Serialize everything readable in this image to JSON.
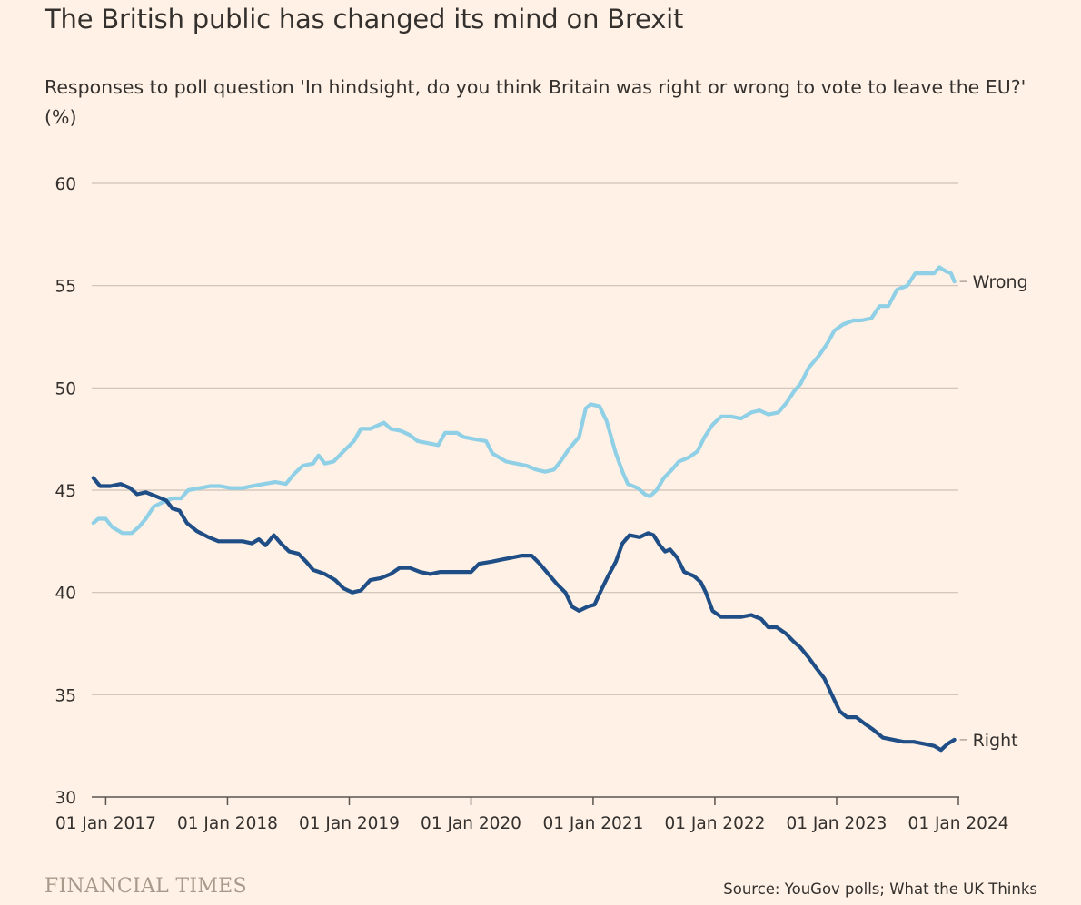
{
  "title": "The British public has changed its mind on Brexit",
  "subtitle": "Responses to poll question 'In hindsight, do you think Britain was right or wrong to vote to leave the EU?' (%)",
  "source": "Source: YouGov polls; What the UK Thinks",
  "brand": "FINANCIAL TIMES",
  "colors": {
    "background": "#fff1e5",
    "wrong": "#8fd0e6",
    "right": "#1f4e86",
    "grid": "#cdc1b7",
    "axis": "#5a5450",
    "text": "#33302e"
  },
  "chart_data": {
    "type": "line",
    "title": "The British public has changed its mind on Brexit",
    "xlabel": "",
    "ylabel": "",
    "xlim": [
      "2016-11-20",
      "2024-01-01"
    ],
    "ylim": [
      30,
      60
    ],
    "yticks": [
      30,
      35,
      40,
      45,
      50,
      55,
      60
    ],
    "xticks": [
      {
        "date": "2017-01-01",
        "label": "01 Jan 2017"
      },
      {
        "date": "2018-01-01",
        "label": "01 Jan 2018"
      },
      {
        "date": "2019-01-01",
        "label": "01 Jan 2019"
      },
      {
        "date": "2020-01-01",
        "label": "01 Jan 2020"
      },
      {
        "date": "2021-01-01",
        "label": "01 Jan 2021"
      },
      {
        "date": "2022-01-01",
        "label": "01 Jan 2022"
      },
      {
        "date": "2023-01-01",
        "label": "01 Jan 2023"
      },
      {
        "date": "2024-01-01",
        "label": "01 Jan 2024"
      }
    ],
    "grid": "horizontal",
    "legend": "end-of-line labels",
    "series": [
      {
        "name": "Wrong",
        "color": "#8fd0e6",
        "points": [
          [
            "2016-11-25",
            43.4
          ],
          [
            "2016-12-10",
            43.6
          ],
          [
            "2017-01-01",
            43.6
          ],
          [
            "2017-01-20",
            43.2
          ],
          [
            "2017-02-20",
            42.9
          ],
          [
            "2017-03-20",
            42.9
          ],
          [
            "2017-04-10",
            43.2
          ],
          [
            "2017-05-01",
            43.6
          ],
          [
            "2017-05-25",
            44.2
          ],
          [
            "2017-06-20",
            44.4
          ],
          [
            "2017-07-20",
            44.6
          ],
          [
            "2017-08-15",
            44.6
          ],
          [
            "2017-09-05",
            45.0
          ],
          [
            "2017-10-10",
            45.1
          ],
          [
            "2017-11-10",
            45.2
          ],
          [
            "2017-12-10",
            45.2
          ],
          [
            "2018-01-10",
            45.1
          ],
          [
            "2018-02-15",
            45.1
          ],
          [
            "2018-03-15",
            45.2
          ],
          [
            "2018-04-20",
            45.3
          ],
          [
            "2018-05-25",
            45.4
          ],
          [
            "2018-06-25",
            45.3
          ],
          [
            "2018-07-20",
            45.8
          ],
          [
            "2018-08-15",
            46.2
          ],
          [
            "2018-09-15",
            46.3
          ],
          [
            "2018-10-01",
            46.7
          ],
          [
            "2018-10-20",
            46.3
          ],
          [
            "2018-11-15",
            46.4
          ],
          [
            "2018-12-15",
            46.9
          ],
          [
            "2019-01-15",
            47.4
          ],
          [
            "2019-02-05",
            48.0
          ],
          [
            "2019-03-05",
            48.0
          ],
          [
            "2019-04-15",
            48.3
          ],
          [
            "2019-05-05",
            48.0
          ],
          [
            "2019-06-05",
            47.9
          ],
          [
            "2019-07-01",
            47.7
          ],
          [
            "2019-07-25",
            47.4
          ],
          [
            "2019-08-25",
            47.3
          ],
          [
            "2019-09-25",
            47.2
          ],
          [
            "2019-10-15",
            47.8
          ],
          [
            "2019-11-20",
            47.8
          ],
          [
            "2019-12-10",
            47.6
          ],
          [
            "2020-01-10",
            47.5
          ],
          [
            "2020-02-15",
            47.4
          ],
          [
            "2020-03-05",
            46.8
          ],
          [
            "2020-04-15",
            46.4
          ],
          [
            "2020-05-15",
            46.3
          ],
          [
            "2020-06-15",
            46.2
          ],
          [
            "2020-07-15",
            46.0
          ],
          [
            "2020-08-10",
            45.9
          ],
          [
            "2020-09-05",
            46.0
          ],
          [
            "2020-09-25",
            46.4
          ],
          [
            "2020-10-20",
            47.0
          ],
          [
            "2020-11-20",
            47.6
          ],
          [
            "2020-12-10",
            49.0
          ],
          [
            "2020-12-25",
            49.2
          ],
          [
            "2021-01-20",
            49.1
          ],
          [
            "2021-02-10",
            48.4
          ],
          [
            "2021-03-10",
            46.8
          ],
          [
            "2021-03-30",
            45.9
          ],
          [
            "2021-04-15",
            45.3
          ],
          [
            "2021-05-15",
            45.1
          ],
          [
            "2021-06-05",
            44.8
          ],
          [
            "2021-06-20",
            44.7
          ],
          [
            "2021-07-10",
            45.0
          ],
          [
            "2021-08-01",
            45.6
          ],
          [
            "2021-08-25",
            46.0
          ],
          [
            "2021-09-15",
            46.4
          ],
          [
            "2021-10-15",
            46.6
          ],
          [
            "2021-11-10",
            46.9
          ],
          [
            "2021-12-01",
            47.6
          ],
          [
            "2021-12-25",
            48.2
          ],
          [
            "2022-01-20",
            48.6
          ],
          [
            "2022-02-20",
            48.6
          ],
          [
            "2022-03-20",
            48.5
          ],
          [
            "2022-04-20",
            48.8
          ],
          [
            "2022-05-15",
            48.9
          ],
          [
            "2022-06-10",
            48.7
          ],
          [
            "2022-07-10",
            48.8
          ],
          [
            "2022-08-05",
            49.3
          ],
          [
            "2022-08-25",
            49.8
          ],
          [
            "2022-09-15",
            50.2
          ],
          [
            "2022-10-10",
            51.0
          ],
          [
            "2022-11-10",
            51.6
          ],
          [
            "2022-12-05",
            52.2
          ],
          [
            "2022-12-25",
            52.8
          ],
          [
            "2023-01-20",
            53.1
          ],
          [
            "2023-02-20",
            53.3
          ],
          [
            "2023-03-15",
            53.3
          ],
          [
            "2023-04-15",
            53.4
          ],
          [
            "2023-05-10",
            54.0
          ],
          [
            "2023-06-05",
            54.0
          ],
          [
            "2023-07-01",
            54.8
          ],
          [
            "2023-08-01",
            55.0
          ],
          [
            "2023-08-25",
            55.6
          ],
          [
            "2023-09-20",
            55.6
          ],
          [
            "2023-10-20",
            55.6
          ],
          [
            "2023-11-05",
            55.9
          ],
          [
            "2023-11-25",
            55.7
          ],
          [
            "2023-12-10",
            55.6
          ],
          [
            "2023-12-20",
            55.2
          ]
        ]
      },
      {
        "name": "Right",
        "color": "#1f4e86",
        "points": [
          [
            "2016-11-25",
            45.6
          ],
          [
            "2016-12-15",
            45.2
          ],
          [
            "2017-01-15",
            45.2
          ],
          [
            "2017-02-15",
            45.3
          ],
          [
            "2017-03-15",
            45.1
          ],
          [
            "2017-04-05",
            44.8
          ],
          [
            "2017-05-01",
            44.9
          ],
          [
            "2017-06-01",
            44.7
          ],
          [
            "2017-07-01",
            44.5
          ],
          [
            "2017-07-20",
            44.1
          ],
          [
            "2017-08-10",
            44.0
          ],
          [
            "2017-09-01",
            43.4
          ],
          [
            "2017-10-01",
            43.0
          ],
          [
            "2017-11-05",
            42.7
          ],
          [
            "2017-12-05",
            42.5
          ],
          [
            "2018-01-10",
            42.5
          ],
          [
            "2018-02-15",
            42.5
          ],
          [
            "2018-03-15",
            42.4
          ],
          [
            "2018-04-05",
            42.6
          ],
          [
            "2018-04-25",
            42.3
          ],
          [
            "2018-05-20",
            42.8
          ],
          [
            "2018-06-10",
            42.4
          ],
          [
            "2018-07-05",
            42.0
          ],
          [
            "2018-08-01",
            41.9
          ],
          [
            "2018-08-25",
            41.5
          ],
          [
            "2018-09-15",
            41.1
          ],
          [
            "2018-10-20",
            40.9
          ],
          [
            "2018-11-20",
            40.6
          ],
          [
            "2018-12-15",
            40.2
          ],
          [
            "2019-01-10",
            40.0
          ],
          [
            "2019-02-05",
            40.1
          ],
          [
            "2019-03-05",
            40.6
          ],
          [
            "2019-04-05",
            40.7
          ],
          [
            "2019-05-05",
            40.9
          ],
          [
            "2019-06-01",
            41.2
          ],
          [
            "2019-07-01",
            41.2
          ],
          [
            "2019-08-01",
            41.0
          ],
          [
            "2019-09-01",
            40.9
          ],
          [
            "2019-10-01",
            41.0
          ],
          [
            "2019-11-01",
            41.0
          ],
          [
            "2019-12-01",
            41.0
          ],
          [
            "2020-01-01",
            41.0
          ],
          [
            "2020-01-25",
            41.4
          ],
          [
            "2020-03-01",
            41.5
          ],
          [
            "2020-04-01",
            41.6
          ],
          [
            "2020-05-01",
            41.7
          ],
          [
            "2020-06-01",
            41.8
          ],
          [
            "2020-07-01",
            41.8
          ],
          [
            "2020-07-25",
            41.4
          ],
          [
            "2020-08-20",
            40.9
          ],
          [
            "2020-09-15",
            40.4
          ],
          [
            "2020-10-10",
            40.0
          ],
          [
            "2020-10-30",
            39.3
          ],
          [
            "2020-11-20",
            39.1
          ],
          [
            "2020-12-15",
            39.3
          ],
          [
            "2021-01-05",
            39.4
          ],
          [
            "2021-01-25",
            40.1
          ],
          [
            "2021-02-15",
            40.8
          ],
          [
            "2021-03-10",
            41.5
          ],
          [
            "2021-03-30",
            42.4
          ],
          [
            "2021-04-20",
            42.8
          ],
          [
            "2021-05-20",
            42.7
          ],
          [
            "2021-06-15",
            42.9
          ],
          [
            "2021-07-01",
            42.8
          ],
          [
            "2021-07-20",
            42.3
          ],
          [
            "2021-08-05",
            42.0
          ],
          [
            "2021-08-20",
            42.1
          ],
          [
            "2021-09-10",
            41.7
          ],
          [
            "2021-10-01",
            41.0
          ],
          [
            "2021-10-30",
            40.8
          ],
          [
            "2021-11-20",
            40.5
          ],
          [
            "2021-12-05",
            40.0
          ],
          [
            "2021-12-25",
            39.1
          ],
          [
            "2022-01-20",
            38.8
          ],
          [
            "2022-02-20",
            38.8
          ],
          [
            "2022-03-20",
            38.8
          ],
          [
            "2022-04-20",
            38.9
          ],
          [
            "2022-05-20",
            38.7
          ],
          [
            "2022-06-10",
            38.3
          ],
          [
            "2022-07-05",
            38.3
          ],
          [
            "2022-08-01",
            38.0
          ],
          [
            "2022-08-25",
            37.6
          ],
          [
            "2022-09-15",
            37.3
          ],
          [
            "2022-10-10",
            36.8
          ],
          [
            "2022-11-01",
            36.3
          ],
          [
            "2022-11-25",
            35.8
          ],
          [
            "2022-12-15",
            35.1
          ],
          [
            "2023-01-10",
            34.2
          ],
          [
            "2023-02-01",
            33.9
          ],
          [
            "2023-03-01",
            33.9
          ],
          [
            "2023-03-25",
            33.6
          ],
          [
            "2023-04-20",
            33.3
          ],
          [
            "2023-05-20",
            32.9
          ],
          [
            "2023-06-20",
            32.8
          ],
          [
            "2023-07-20",
            32.7
          ],
          [
            "2023-08-20",
            32.7
          ],
          [
            "2023-09-20",
            32.6
          ],
          [
            "2023-10-20",
            32.5
          ],
          [
            "2023-11-10",
            32.3
          ],
          [
            "2023-11-30",
            32.6
          ],
          [
            "2023-12-20",
            32.8
          ]
        ]
      }
    ]
  }
}
